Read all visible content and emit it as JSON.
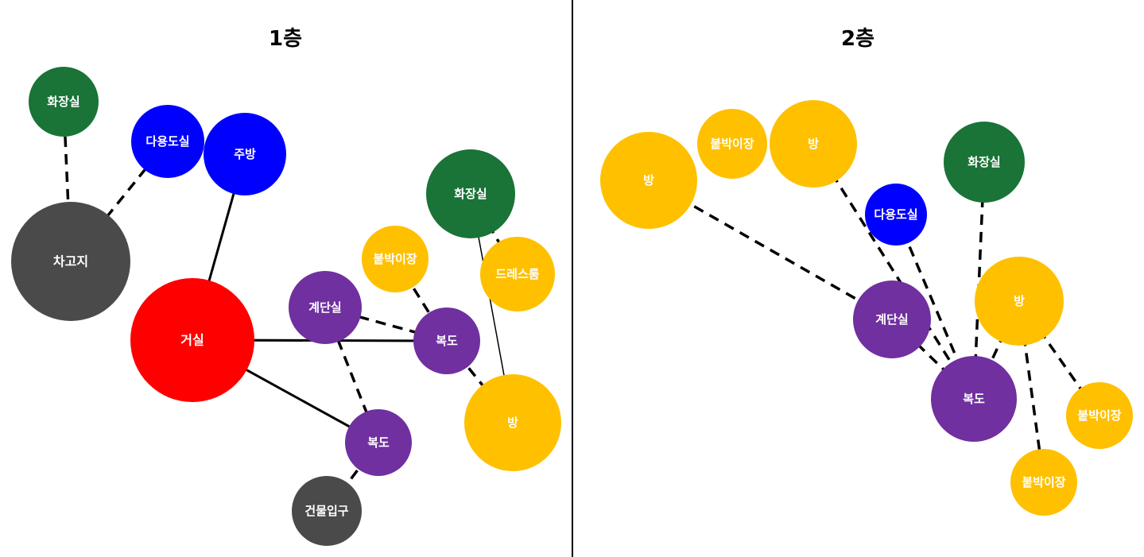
{
  "floors": [
    {
      "title": "1층",
      "rooms": [
        {
          "id": "f1-toilet-a",
          "label": "화장실",
          "type": "bathroom"
        },
        {
          "id": "f1-utility",
          "label": "다용도실",
          "type": "utility"
        },
        {
          "id": "f1-kitchen",
          "label": "주방",
          "type": "utility"
        },
        {
          "id": "f1-garage",
          "label": "차고지",
          "type": "entrance"
        },
        {
          "id": "f1-living",
          "label": "거실",
          "type": "living"
        },
        {
          "id": "f1-toilet-b",
          "label": "화장실",
          "type": "bathroom"
        },
        {
          "id": "f1-closet",
          "label": "붙박이장",
          "type": "private"
        },
        {
          "id": "f1-dressroom",
          "label": "드레스룸",
          "type": "private"
        },
        {
          "id": "f1-stairs",
          "label": "계단실",
          "type": "circulation"
        },
        {
          "id": "f1-hall-a",
          "label": "복도",
          "type": "circulation"
        },
        {
          "id": "f1-room",
          "label": "방",
          "type": "private"
        },
        {
          "id": "f1-hall-b",
          "label": "복도",
          "type": "circulation"
        },
        {
          "id": "f1-entrance",
          "label": "건물입구",
          "type": "entrance"
        }
      ],
      "links": [
        {
          "from": "f1-toilet-a",
          "to": "f1-garage",
          "style": "dashed"
        },
        {
          "from": "f1-utility",
          "to": "f1-garage",
          "style": "dashed"
        },
        {
          "from": "f1-kitchen",
          "to": "f1-living",
          "style": "solid"
        },
        {
          "from": "f1-living",
          "to": "f1-hall-a",
          "style": "solid"
        },
        {
          "from": "f1-living",
          "to": "f1-hall-b",
          "style": "solid"
        },
        {
          "from": "f1-stairs",
          "to": "f1-hall-a",
          "style": "dashed"
        },
        {
          "from": "f1-stairs",
          "to": "f1-hall-b",
          "style": "dashed"
        },
        {
          "from": "f1-closet",
          "to": "f1-hall-a",
          "style": "dashed"
        },
        {
          "from": "f1-hall-a",
          "to": "f1-room",
          "style": "dashed"
        },
        {
          "from": "f1-toilet-b",
          "to": "f1-room",
          "style": "thin"
        },
        {
          "from": "f1-toilet-b",
          "to": "f1-dressroom",
          "style": "dashed"
        },
        {
          "from": "f1-hall-b",
          "to": "f1-entrance",
          "style": "dashed"
        }
      ]
    },
    {
      "title": "2층",
      "rooms": [
        {
          "id": "f2-room-a",
          "label": "방",
          "type": "private"
        },
        {
          "id": "f2-closet-a",
          "label": "붙박이장",
          "type": "private"
        },
        {
          "id": "f2-room-b",
          "label": "방",
          "type": "private"
        },
        {
          "id": "f2-toilet",
          "label": "화장실",
          "type": "bathroom"
        },
        {
          "id": "f2-utility",
          "label": "다용도실",
          "type": "utility"
        },
        {
          "id": "f2-stairs",
          "label": "계단실",
          "type": "circulation"
        },
        {
          "id": "f2-room-c",
          "label": "방",
          "type": "private"
        },
        {
          "id": "f2-hall",
          "label": "복도",
          "type": "circulation"
        },
        {
          "id": "f2-closet-b",
          "label": "붙박이장",
          "type": "private"
        },
        {
          "id": "f2-closet-c",
          "label": "붙박이장",
          "type": "private"
        }
      ],
      "links": [
        {
          "from": "f2-room-a",
          "to": "f2-stairs",
          "style": "dashed"
        },
        {
          "from": "f2-room-b",
          "to": "f2-hall",
          "style": "dashed"
        },
        {
          "from": "f2-utility",
          "to": "f2-hall",
          "style": "dashed"
        },
        {
          "from": "f2-stairs",
          "to": "f2-hall",
          "style": "dashed"
        },
        {
          "from": "f2-toilet",
          "to": "f2-hall",
          "style": "dashed"
        },
        {
          "from": "f2-room-c",
          "to": "f2-hall",
          "style": "dashed"
        },
        {
          "from": "f2-room-c",
          "to": "f2-closet-b",
          "style": "dashed"
        },
        {
          "from": "f2-room-c",
          "to": "f2-closet-c",
          "style": "dashed"
        }
      ]
    }
  ],
  "colors": {
    "bathroom": "#1a7337",
    "utility": "#0000ff",
    "entrance": "#4a4a4a",
    "living": "#ff0000",
    "private": "#ffc000",
    "circulation": "#7030a0",
    "divider": "#000000",
    "link": "#000000"
  }
}
